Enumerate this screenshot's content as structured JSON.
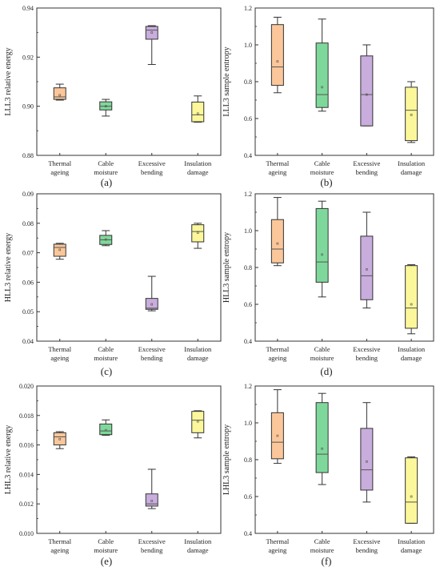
{
  "chart_data": [
    {
      "panel": "(a)",
      "type": "box",
      "ylabel": "LLL3 relative energy",
      "ylim": [
        0.88,
        0.94
      ],
      "yticks": [
        "0.88",
        "0.90",
        "0.92",
        "0.94"
      ],
      "categories": [
        "Thermal ageing",
        "Cable moisture",
        "Excessive bending",
        "Insulation damage"
      ],
      "boxes": [
        {
          "min": 0.9025,
          "q1": 0.9028,
          "median": 0.9038,
          "q3": 0.9075,
          "max": 0.909,
          "mean": 0.9045
        },
        {
          "min": 0.896,
          "q1": 0.8985,
          "median": 0.9,
          "q3": 0.9018,
          "max": 0.9028,
          "mean": 0.9
        },
        {
          "min": 0.917,
          "q1": 0.9273,
          "median": 0.931,
          "q3": 0.9325,
          "max": 0.9328,
          "mean": 0.93
        },
        {
          "min": 0.8935,
          "q1": 0.8937,
          "median": 0.8965,
          "q3": 0.9017,
          "max": 0.9042,
          "mean": 0.897
        }
      ]
    },
    {
      "panel": "(b)",
      "type": "box",
      "ylabel": "LLL3 sample entropy",
      "ylim": [
        0.4,
        1.2
      ],
      "yticks": [
        "0.4",
        "0.6",
        "0.8",
        "1.0",
        "1.2"
      ],
      "categories": [
        "Thermal ageing",
        "Cable moisture",
        "Excessive bending",
        "Insulation damage"
      ],
      "boxes": [
        {
          "min": 0.74,
          "q1": 0.78,
          "median": 0.88,
          "q3": 1.11,
          "max": 1.15,
          "mean": 0.91
        },
        {
          "min": 0.64,
          "q1": 0.66,
          "median": 0.73,
          "q3": 1.01,
          "max": 1.14,
          "mean": 0.77
        },
        {
          "min": 0.56,
          "q1": 0.56,
          "median": 0.73,
          "q3": 0.94,
          "max": 1.0,
          "mean": 0.73
        },
        {
          "min": 0.47,
          "q1": 0.48,
          "median": 0.645,
          "q3": 0.77,
          "max": 0.8,
          "mean": 0.62
        }
      ]
    },
    {
      "panel": "(c)",
      "type": "box",
      "ylabel": "HLL3 relative energy",
      "ylim": [
        0.04,
        0.09
      ],
      "yticks": [
        "0.04",
        "0.05",
        "0.06",
        "0.07",
        "0.08",
        "0.09"
      ],
      "categories": [
        "Thermal ageing",
        "Cable moisture",
        "Excessive bending",
        "Insulation damage"
      ],
      "boxes": [
        {
          "min": 0.0678,
          "q1": 0.0688,
          "median": 0.0718,
          "q3": 0.0729,
          "max": 0.0732,
          "mean": 0.071
        },
        {
          "min": 0.0724,
          "q1": 0.0728,
          "median": 0.0744,
          "q3": 0.0759,
          "max": 0.0775,
          "mean": 0.0745
        },
        {
          "min": 0.0503,
          "q1": 0.0508,
          "median": 0.0512,
          "q3": 0.0545,
          "max": 0.062,
          "mean": 0.0525
        },
        {
          "min": 0.0715,
          "q1": 0.0737,
          "median": 0.0772,
          "q3": 0.0795,
          "max": 0.08,
          "mean": 0.0768
        }
      ]
    },
    {
      "panel": "(d)",
      "type": "box",
      "ylabel": "HLL3 sample entropy",
      "ylim": [
        0.4,
        1.2
      ],
      "yticks": [
        "0.4",
        "0.6",
        "0.8",
        "1.0",
        "1.2"
      ],
      "categories": [
        "Thermal ageing",
        "Cable moisture",
        "Excessive bending",
        "Insulation damage"
      ],
      "boxes": [
        {
          "min": 0.81,
          "q1": 0.825,
          "median": 0.9,
          "q3": 1.06,
          "max": 1.18,
          "mean": 0.93
        },
        {
          "min": 0.64,
          "q1": 0.72,
          "median": 0.83,
          "q3": 1.12,
          "max": 1.16,
          "mean": 0.87
        },
        {
          "min": 0.58,
          "q1": 0.625,
          "median": 0.755,
          "q3": 0.97,
          "max": 1.1,
          "mean": 0.79
        },
        {
          "min": 0.44,
          "q1": 0.47,
          "median": 0.58,
          "q3": 0.81,
          "max": 0.815,
          "mean": 0.6
        }
      ]
    },
    {
      "panel": "(e)",
      "type": "box",
      "ylabel": "LHL3 relative energy",
      "ylim": [
        0.01,
        0.02
      ],
      "yticks": [
        "0.010",
        "0.012",
        "0.014",
        "0.016",
        "0.018",
        "0.020"
      ],
      "categories": [
        "Thermal ageing",
        "Cable moisture",
        "Excessive bending",
        "Insulation damage"
      ],
      "boxes": [
        {
          "min": 0.01575,
          "q1": 0.016,
          "median": 0.01655,
          "q3": 0.01683,
          "max": 0.0169,
          "mean": 0.0164
        },
        {
          "min": 0.01665,
          "q1": 0.0167,
          "median": 0.01695,
          "q3": 0.01742,
          "max": 0.0177,
          "mean": 0.017
        },
        {
          "min": 0.01168,
          "q1": 0.01185,
          "median": 0.012,
          "q3": 0.01268,
          "max": 0.01435,
          "mean": 0.0122
        },
        {
          "min": 0.01648,
          "q1": 0.01683,
          "median": 0.01768,
          "q3": 0.01828,
          "max": 0.01832,
          "mean": 0.0176
        }
      ]
    },
    {
      "panel": "(f)",
      "type": "box",
      "ylabel": "LHL3 sample entropy",
      "ylim": [
        0.4,
        1.2
      ],
      "yticks": [
        "0.4",
        "0.6",
        "0.8",
        "1.0",
        "1.2"
      ],
      "categories": [
        "Thermal ageing",
        "Cable moisture",
        "Excessive bending",
        "Insulation damage"
      ],
      "boxes": [
        {
          "min": 0.78,
          "q1": 0.805,
          "median": 0.895,
          "q3": 1.055,
          "max": 1.18,
          "mean": 0.93
        },
        {
          "min": 0.665,
          "q1": 0.73,
          "median": 0.83,
          "q3": 1.11,
          "max": 1.16,
          "mean": 0.86
        },
        {
          "min": 0.57,
          "q1": 0.635,
          "median": 0.745,
          "q3": 0.97,
          "max": 1.11,
          "mean": 0.79
        },
        {
          "min": 0.455,
          "q1": 0.455,
          "median": 0.57,
          "q3": 0.81,
          "max": 0.815,
          "mean": 0.6
        }
      ]
    }
  ],
  "colors": {
    "fills": [
      "#fbc79a",
      "#7fd89b",
      "#c9addd",
      "#fbf79a"
    ],
    "median": "#555555",
    "frame": "#333333"
  }
}
